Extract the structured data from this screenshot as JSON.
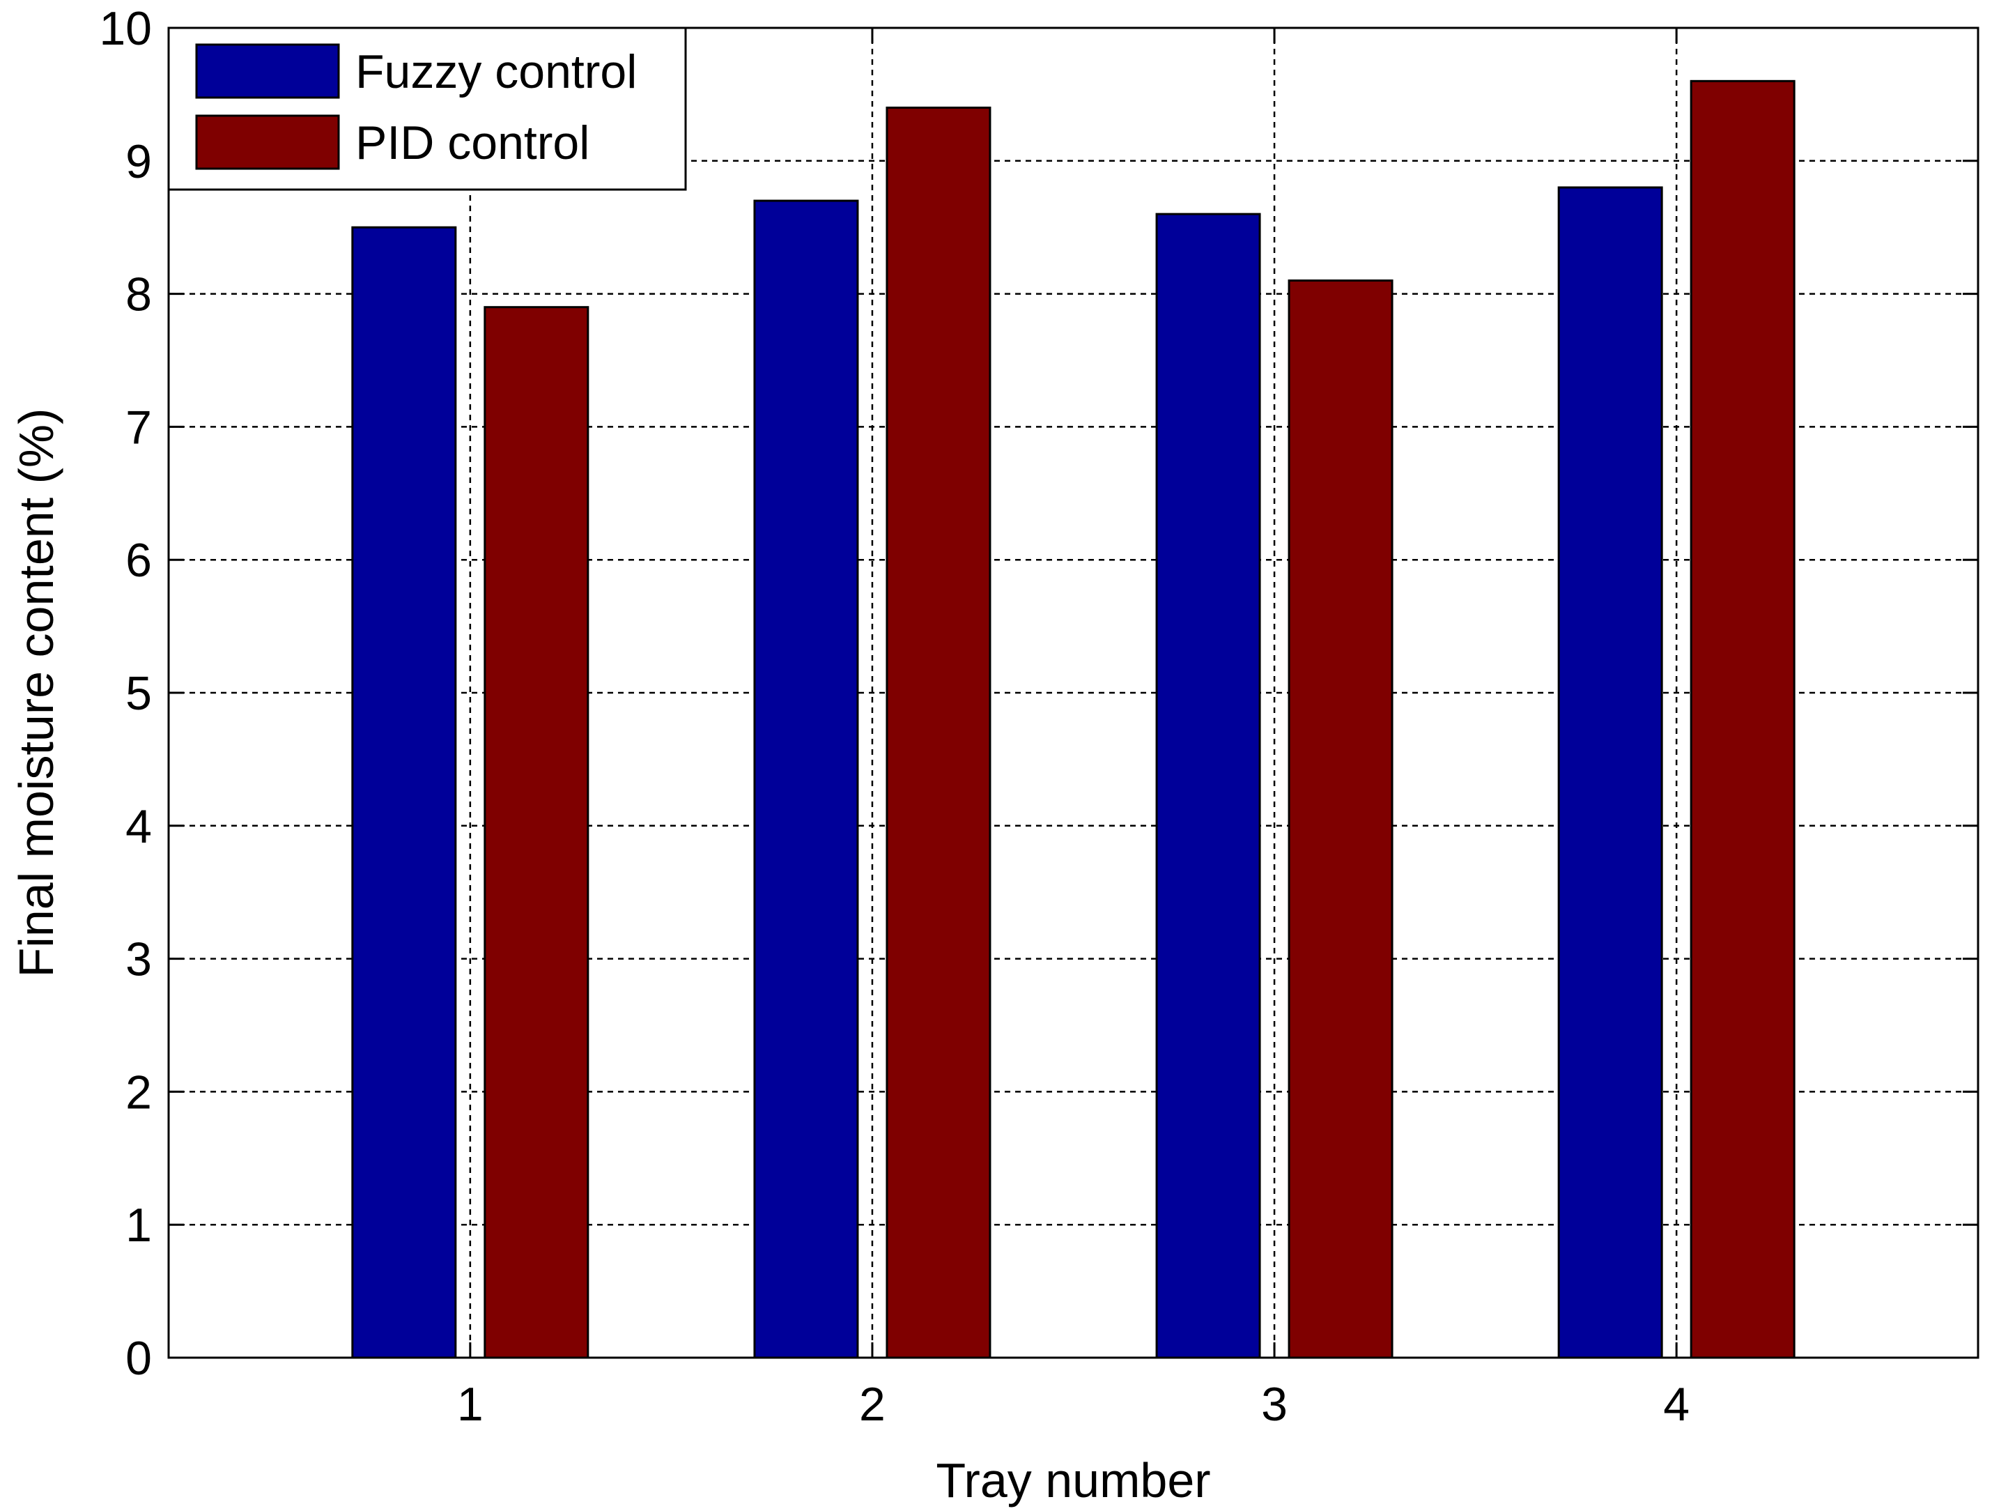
{
  "chart_data": {
    "type": "bar",
    "title": "",
    "xlabel": "Tray number",
    "ylabel": "Final moisture content (%)",
    "categories": [
      "1",
      "2",
      "3",
      "4"
    ],
    "ylim": [
      0,
      10
    ],
    "yticks": [
      "0",
      "1",
      "2",
      "3",
      "4",
      "5",
      "6",
      "7",
      "8",
      "9",
      "10"
    ],
    "grid": true,
    "legend_position": "top-left",
    "series": [
      {
        "name": "Fuzzy control",
        "color": "#000099",
        "values": [
          8.5,
          8.7,
          8.6,
          8.8
        ]
      },
      {
        "name": "PID control",
        "color": "#7f0000",
        "values": [
          7.9,
          9.4,
          8.1,
          9.6
        ]
      }
    ]
  }
}
